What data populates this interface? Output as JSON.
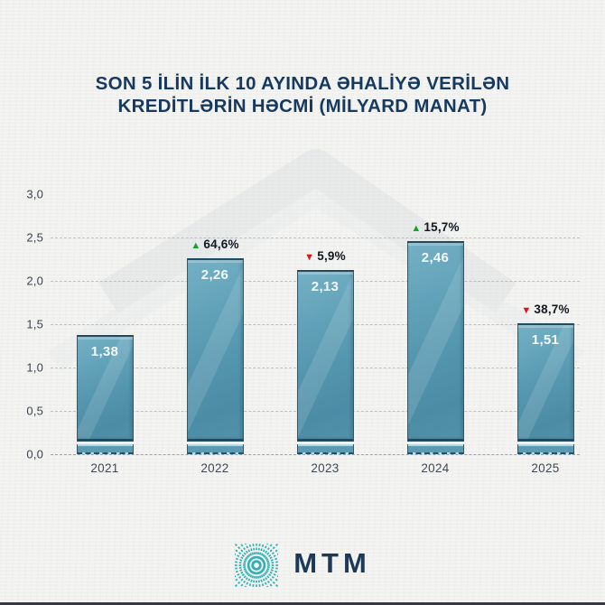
{
  "title": {
    "line1": "SON 5 İLİN İLK 10 AYINDA ƏHALİYƏ VERİLƏN",
    "line2": "KREDİTLƏRİN HƏCMİ (MİLYARD MANAT)"
  },
  "chart_data": {
    "type": "bar",
    "title": "SON 5 İLİN İLK 10 AYINDA ƏHALİYƏ VERİLƏN KREDİTLƏRİN HƏCMİ (MİLYARD MANAT)",
    "categories": [
      "2021",
      "2022",
      "2023",
      "2024",
      "2025"
    ],
    "values": [
      1.38,
      2.26,
      2.13,
      2.46,
      1.51
    ],
    "value_labels": [
      "1,38",
      "2,26",
      "2,13",
      "2,46",
      "1,51"
    ],
    "changes": [
      null,
      {
        "dir": "up",
        "label": "64,6%"
      },
      {
        "dir": "down",
        "label": "5,9%"
      },
      {
        "dir": "up",
        "label": "15,7%"
      },
      {
        "dir": "down",
        "label": "38,7%"
      }
    ],
    "xlabel": "",
    "ylabel": "",
    "ylim": [
      0,
      3.0
    ],
    "y_ticks": [
      "0,0",
      "0,5",
      "1,0",
      "1,5",
      "2,0",
      "2,5",
      "3,0"
    ],
    "grid": true,
    "legend": false,
    "up_marker": "▲",
    "down_marker": "▼"
  },
  "footer": {
    "logo_text": "MTM"
  },
  "colors": {
    "background": "#f1f1ef",
    "title_navy": "#16395f",
    "bar_teal": "#5596af",
    "bar_edge": "#2b5a72",
    "up_green": "#14a32c",
    "down_red": "#e01318",
    "logo_teal": "#31b0b4",
    "axis_text": "#3d434c"
  }
}
